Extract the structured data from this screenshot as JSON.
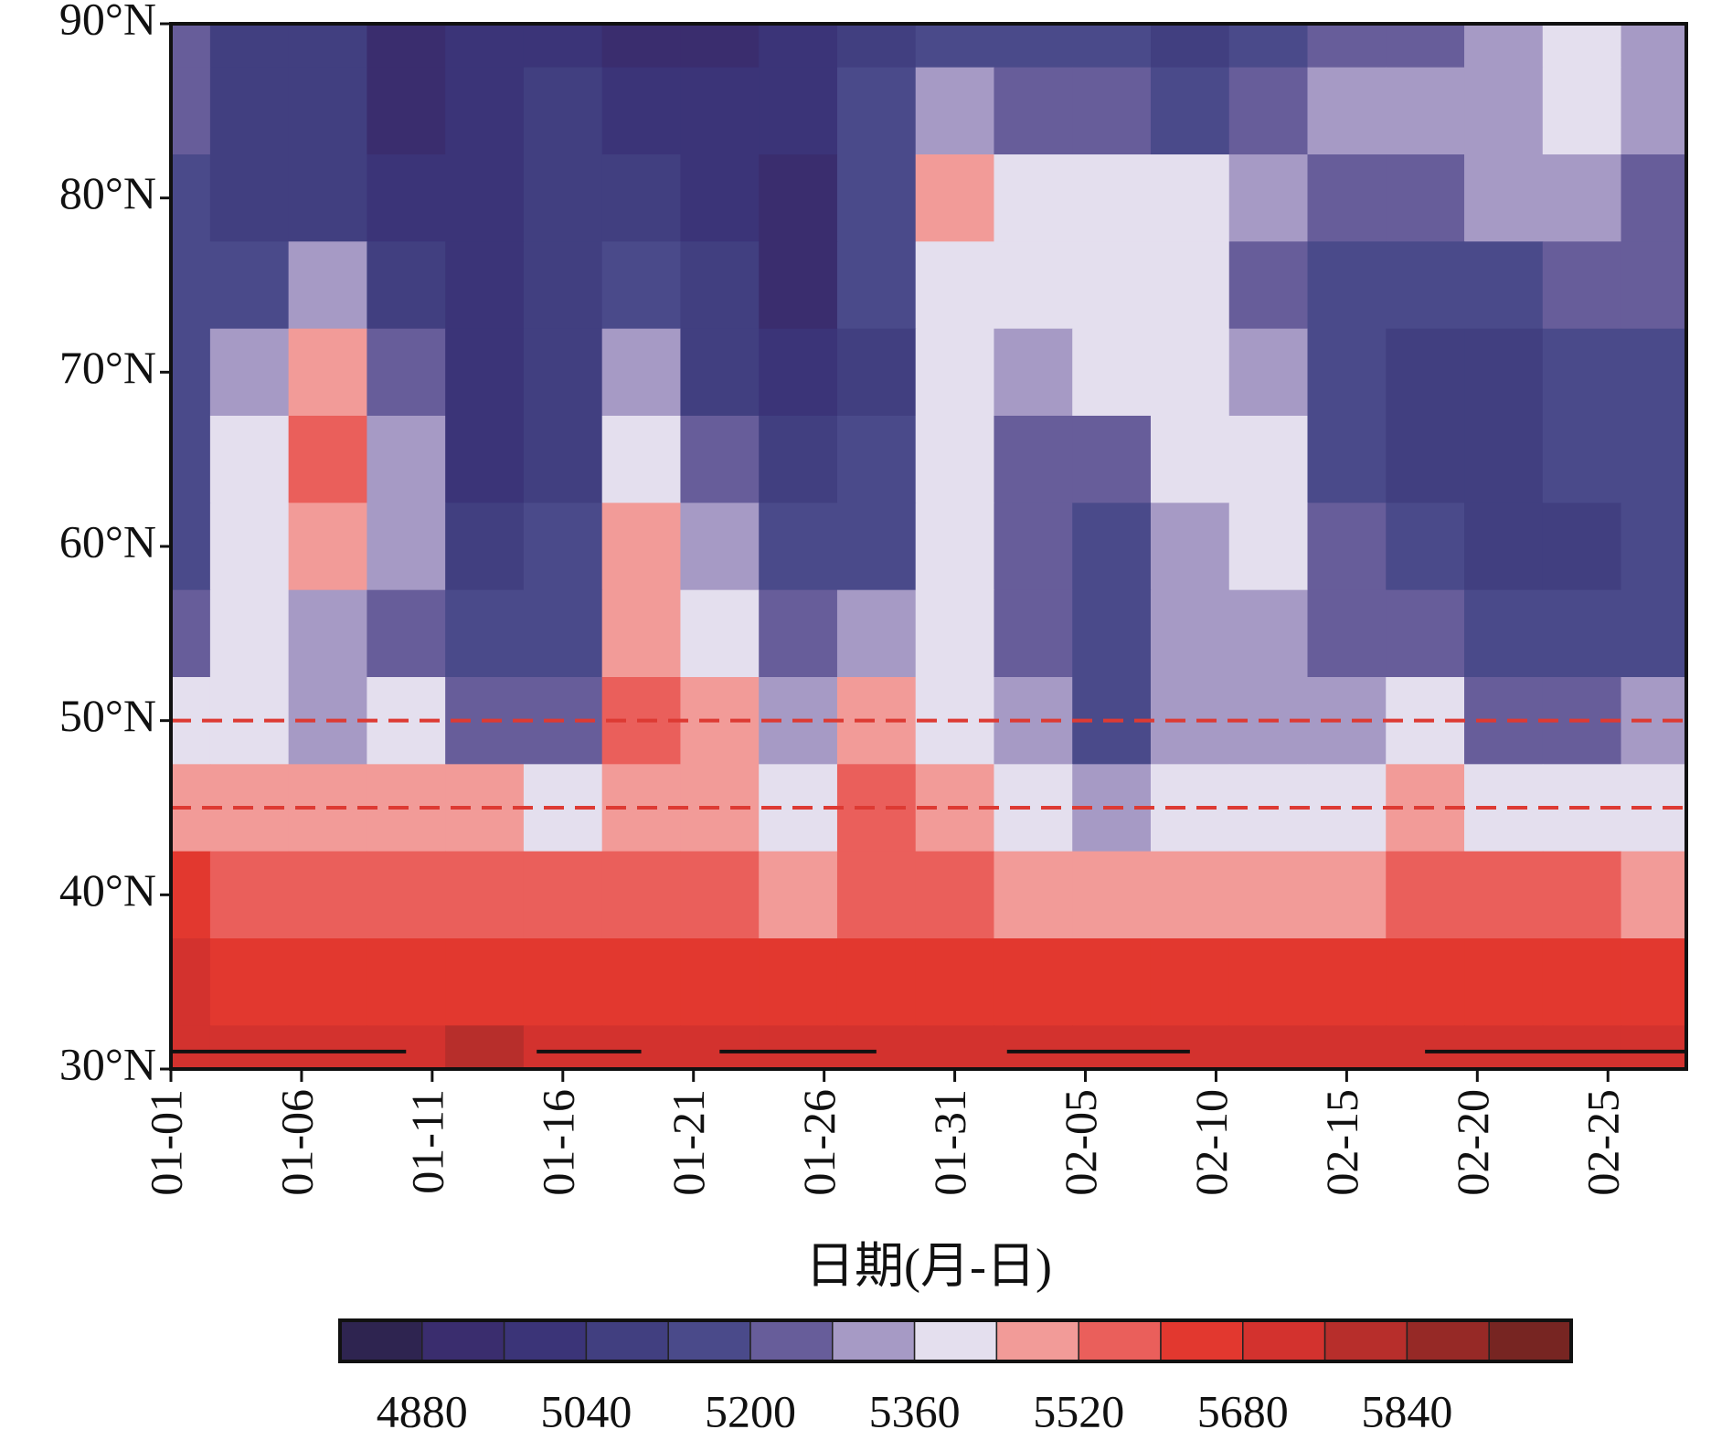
{
  "chart_data": {
    "type": "contour",
    "x_title": "日期(月-日)",
    "x": [
      "01-01",
      "01-04",
      "01-07",
      "01-10",
      "01-13",
      "01-16",
      "01-19",
      "01-22",
      "01-25",
      "01-28",
      "01-31",
      "02-03",
      "02-06",
      "02-09",
      "02-12",
      "02-15",
      "02-18",
      "02-21",
      "02-24",
      "02-27"
    ],
    "xlim": [
      "01-01",
      "02-28"
    ],
    "xticks": [
      "01-01",
      "01-06",
      "01-11",
      "01-16",
      "01-21",
      "01-26",
      "01-31",
      "02-05",
      "02-10",
      "02-15",
      "02-20",
      "02-25"
    ],
    "y": [
      90,
      85,
      80,
      75,
      70,
      65,
      60,
      55,
      50,
      45,
      40,
      35,
      30
    ],
    "ylim": [
      30,
      90
    ],
    "yticks": [
      {
        "value": 30,
        "label": "30°N"
      },
      {
        "value": 40,
        "label": "40°N"
      },
      {
        "value": 50,
        "label": "50°N"
      },
      {
        "value": 60,
        "label": "60°N"
      },
      {
        "value": 70,
        "label": "70°N"
      },
      {
        "value": 80,
        "label": "80°N"
      },
      {
        "value": 90,
        "label": "90°N"
      }
    ],
    "z": [
      [
        5240,
        5080,
        5080,
        4920,
        5000,
        5000,
        4920,
        4920,
        5000,
        5080,
        5160,
        5160,
        5160,
        5080,
        5160,
        5240,
        5240,
        5320,
        5400,
        5320
      ],
      [
        5240,
        5080,
        5080,
        4920,
        5000,
        5080,
        5000,
        5000,
        5000,
        5160,
        5320,
        5240,
        5240,
        5160,
        5240,
        5320,
        5320,
        5320,
        5400,
        5320
      ],
      [
        5160,
        5080,
        5080,
        5000,
        5000,
        5080,
        5080,
        5000,
        4920,
        5160,
        5480,
        5400,
        5400,
        5400,
        5320,
        5240,
        5240,
        5320,
        5320,
        5240
      ],
      [
        5160,
        5160,
        5320,
        5080,
        5000,
        5080,
        5160,
        5080,
        4920,
        5160,
        5400,
        5400,
        5400,
        5400,
        5240,
        5160,
        5160,
        5160,
        5240,
        5240
      ],
      [
        5160,
        5320,
        5480,
        5240,
        5000,
        5080,
        5320,
        5080,
        5000,
        5080,
        5400,
        5320,
        5400,
        5400,
        5320,
        5160,
        5080,
        5080,
        5160,
        5160
      ],
      [
        5160,
        5400,
        5560,
        5320,
        5000,
        5080,
        5400,
        5240,
        5080,
        5160,
        5400,
        5240,
        5240,
        5400,
        5400,
        5160,
        5080,
        5080,
        5160,
        5160
      ],
      [
        5160,
        5400,
        5480,
        5320,
        5080,
        5160,
        5480,
        5320,
        5160,
        5160,
        5400,
        5240,
        5160,
        5320,
        5400,
        5240,
        5160,
        5080,
        5080,
        5160
      ],
      [
        5240,
        5400,
        5320,
        5240,
        5160,
        5160,
        5480,
        5400,
        5240,
        5320,
        5400,
        5240,
        5160,
        5320,
        5320,
        5240,
        5240,
        5160,
        5160,
        5160
      ],
      [
        5400,
        5400,
        5320,
        5400,
        5240,
        5240,
        5560,
        5480,
        5320,
        5480,
        5400,
        5320,
        5160,
        5320,
        5320,
        5320,
        5400,
        5240,
        5240,
        5320
      ],
      [
        5480,
        5480,
        5480,
        5480,
        5480,
        5400,
        5480,
        5480,
        5400,
        5560,
        5480,
        5400,
        5320,
        5400,
        5400,
        5400,
        5480,
        5400,
        5400,
        5400
      ],
      [
        5640,
        5560,
        5560,
        5560,
        5560,
        5560,
        5560,
        5560,
        5480,
        5560,
        5560,
        5480,
        5480,
        5480,
        5480,
        5480,
        5560,
        5560,
        5560,
        5480
      ],
      [
        5720,
        5640,
        5640,
        5640,
        5640,
        5640,
        5640,
        5640,
        5640,
        5640,
        5640,
        5640,
        5640,
        5640,
        5640,
        5640,
        5640,
        5640,
        5640,
        5640
      ],
      [
        5720,
        5720,
        5720,
        5720,
        5800,
        5720,
        5720,
        5720,
        5720,
        5720,
        5720,
        5720,
        5720,
        5720,
        5720,
        5720,
        5720,
        5720,
        5720,
        5720
      ]
    ],
    "levels": [
      4800,
      4880,
      4960,
      5040,
      5120,
      5200,
      5280,
      5360,
      5440,
      5520,
      5600,
      5680,
      5760,
      5840,
      5920,
      6000
    ],
    "colors": [
      "#2e2450",
      "#3a2d6e",
      "#3b3478",
      "#413f80",
      "#4a4a8a",
      "#675d9a",
      "#a69ac5",
      "#e4dfee",
      "#f29b98",
      "#ea5f5b",
      "#e2382f",
      "#d3322e",
      "#b72e2b",
      "#962926",
      "#772522"
    ],
    "colorbar_ticks": [
      4880,
      5040,
      5200,
      5360,
      5520,
      5680,
      5840
    ],
    "hlines": [
      50,
      45
    ],
    "hline_color": "#dd3a33",
    "periods": [
      [
        "01-01",
        "01-10"
      ],
      [
        "01-15",
        "01-19"
      ],
      [
        "01-22",
        "01-28"
      ],
      [
        "02-02",
        "02-09"
      ],
      [
        "02-18",
        "02-28"
      ]
    ],
    "period_lat": 31,
    "period_color": "#111111"
  }
}
